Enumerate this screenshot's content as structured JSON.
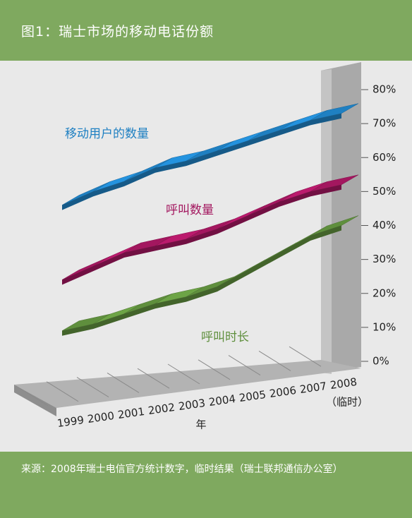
{
  "title": "图1：瑞士市场的移动电话份额",
  "source": "来源：2008年瑞士电信官方统计数字，临时结果（瑞士联邦通信办公室）",
  "chart_data": {
    "type": "ribbon3d",
    "categories": [
      "1999",
      "2000",
      "2001",
      "2002",
      "2003",
      "2004",
      "2005",
      "2006",
      "2007",
      "2008"
    ],
    "category_note": "（临时）",
    "x_label": "年",
    "ylim": [
      0,
      80
    ],
    "yticks": [
      {
        "value": 0,
        "label": "0%"
      },
      {
        "value": 10,
        "label": "10%"
      },
      {
        "value": 20,
        "label": "20%"
      },
      {
        "value": 30,
        "label": "30%"
      },
      {
        "value": 40,
        "label": "40%"
      },
      {
        "value": 50,
        "label": "50%"
      },
      {
        "value": 60,
        "label": "60%"
      },
      {
        "value": 70,
        "label": "70%"
      },
      {
        "value": 80,
        "label": "80%"
      }
    ],
    "series": [
      {
        "name": "移动用户的数量",
        "color": "#1f80c2",
        "values": [
          46,
          50,
          53,
          57,
          59,
          62,
          65,
          68,
          71,
          73
        ]
      },
      {
        "name": "呼叫数量",
        "color": "#a3175f",
        "values": [
          24,
          28,
          32,
          34,
          36,
          39,
          43,
          47,
          50,
          52
        ]
      },
      {
        "name": "呼叫时长",
        "color": "#5f8f3d",
        "values": [
          9,
          11,
          14,
          17,
          19,
          22,
          27,
          32,
          37,
          40
        ]
      }
    ]
  }
}
